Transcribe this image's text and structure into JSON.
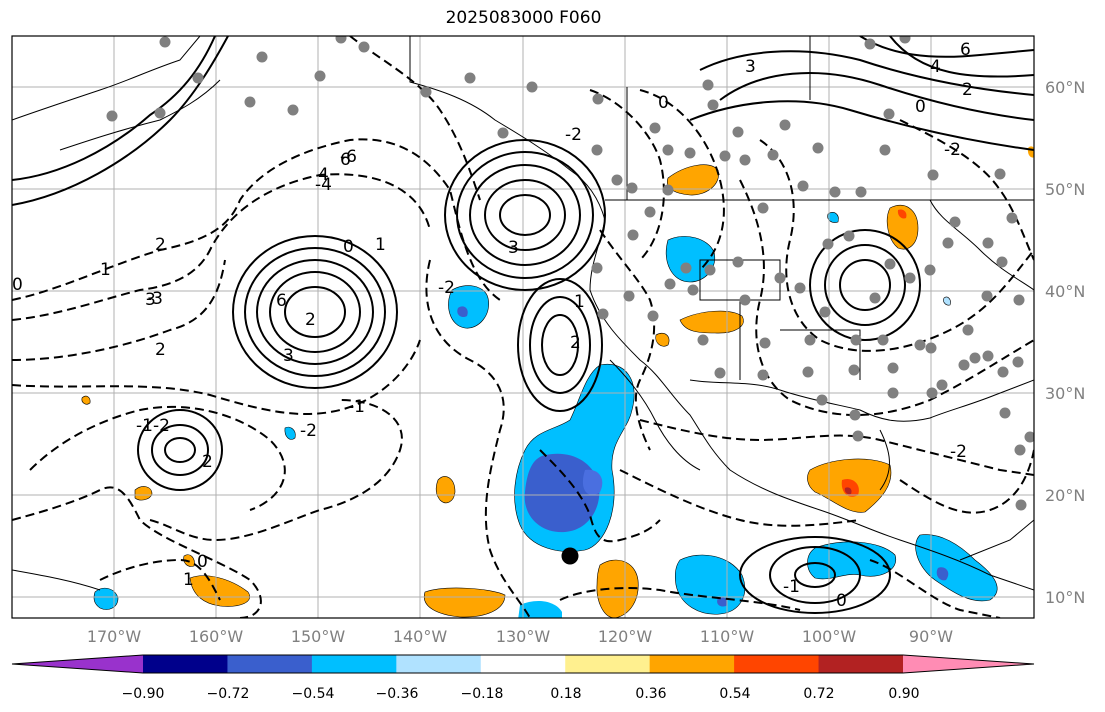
{
  "title": "2025083000 F060",
  "lat_labels": [
    "60°N",
    "50°N",
    "40°N",
    "30°N",
    "20°N",
    "10°N"
  ],
  "lon_labels": [
    "170°W",
    "160°W",
    "150°W",
    "140°W",
    "130°W",
    "120°W",
    "110°W",
    "100°W",
    "90°W"
  ],
  "colorbar": {
    "ticks": [
      "−0.90",
      "−0.72",
      "−0.54",
      "−0.36",
      "−0.18",
      "0.18",
      "0.36",
      "0.54",
      "0.72",
      "0.90"
    ],
    "colors": [
      "#9932cc",
      "#00008b",
      "#3a5fcd",
      "#00bfff",
      "#b0e2ff",
      "#ffffff",
      "#fff08f",
      "#ffa500",
      "#ff4500",
      "#b22222",
      "#ff8cb4"
    ]
  },
  "colors": {
    "contour": "#000000",
    "station": "#808080",
    "grid": "#b0b0b0",
    "coast": "#000000"
  },
  "contour_labels": [
    "0",
    "1",
    "2",
    "2",
    "3",
    "4",
    "6",
    "-1",
    "-2",
    "-2",
    "3",
    "6",
    "1",
    "2",
    "0",
    "-2",
    "-1",
    "0",
    "1",
    "2",
    "3",
    "-4",
    "-6",
    "-2",
    "0",
    "2",
    "4",
    "6",
    "3",
    "-2",
    "0",
    "1",
    "-2",
    "-1",
    "0",
    "2",
    "-3"
  ],
  "storm_marker": "low-center"
}
